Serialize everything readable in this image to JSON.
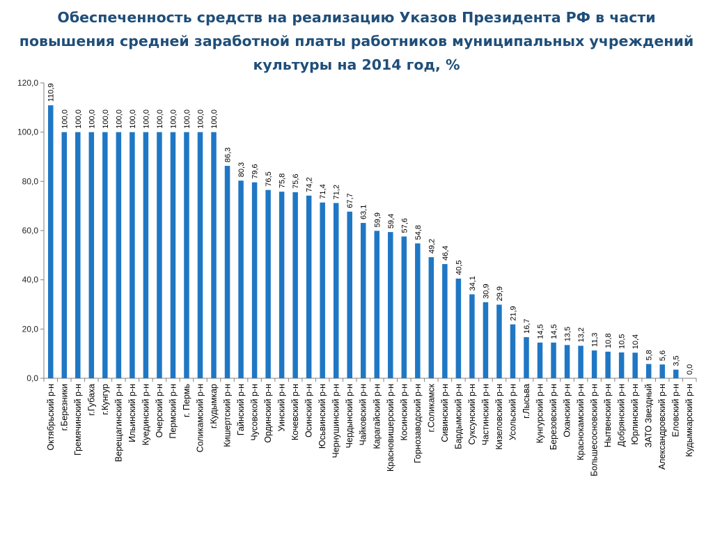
{
  "chart_data": {
    "type": "bar",
    "title": "Обеспеченность средств на реализацию Указов Президента РФ в части повышения средней заработной платы работников муниципальных учреждений культуры на 2014 год, %",
    "xlabel": "",
    "ylabel": "",
    "ylim": [
      0,
      120
    ],
    "yticks": [
      "0,0",
      "20,0",
      "40,0",
      "60,0",
      "80,0",
      "100,0",
      "120,0"
    ],
    "ytick_values": [
      0,
      20,
      40,
      60,
      80,
      100,
      120
    ],
    "grid": false,
    "legend": "none",
    "bar_color": "#1f77c4",
    "categories": [
      "Октябрьский р-н",
      "г.Березники",
      "Гремячинский р-н",
      "г.Губаха",
      "г.Кунгур",
      "Верещагинский р-н",
      "Ильинский р-н",
      "Куединский р-н",
      "Очерский р-н",
      "Пермский р-н",
      "г. Пермь",
      "Соликамский р-н",
      "г.Кудымкар",
      "Кишертский р-н",
      "Гайнский р-н",
      "Чусовской р-н",
      "Ординский р-н",
      "Уинский р-н",
      "Кочевский р-н",
      "Осинский р-н",
      "Юсьвинский р-н",
      "Чернушинский р-н",
      "Чердынский р-н",
      "Чайковский р-н",
      "Карагайский р-н",
      "Красновишерский р-н",
      "Косинский р-н",
      "Горнозаводский р-н",
      "г.Соликамск",
      "Сивинский р-н",
      "Бардымский р-н",
      "Суксунский р-н",
      "Частинский р-н",
      "Кизеловский р-н",
      "Усольский р-н",
      "г.Лысьва",
      "Кунгурский р-н",
      "Березовский р-н",
      "Оханский р-н",
      "Краснокамский р-н",
      "Большесосновский р-н",
      "Нытвенский р-н",
      "Добрянский р-н",
      "Юрлинский р-н",
      "ЗАТО Звездный",
      "Александровский р-н",
      "Еловский р-н",
      "Кудымкарский р-н"
    ],
    "values": [
      110.9,
      100.0,
      100.0,
      100.0,
      100.0,
      100.0,
      100.0,
      100.0,
      100.0,
      100.0,
      100.0,
      100.0,
      100.0,
      86.3,
      80.3,
      79.6,
      76.5,
      75.8,
      75.6,
      74.2,
      71.4,
      71.2,
      67.7,
      63.1,
      59.9,
      59.4,
      57.6,
      54.8,
      49.2,
      46.4,
      40.5,
      34.1,
      30.9,
      29.9,
      21.9,
      16.7,
      14.5,
      14.5,
      13.5,
      13.2,
      11.3,
      10.8,
      10.5,
      10.4,
      5.8,
      5.6,
      3.5,
      0.0
    ],
    "value_labels": [
      "110,9",
      "100,0",
      "100,0",
      "100,0",
      "100,0",
      "100,0",
      "100,0",
      "100,0",
      "100,0",
      "100,0",
      "100,0",
      "100,0",
      "100,0",
      "86,3",
      "80,3",
      "79,6",
      "76,5",
      "75,8",
      "75,6",
      "74,2",
      "71,4",
      "71,2",
      "67,7",
      "63,1",
      "59,9",
      "59,4",
      "57,6",
      "54,8",
      "49,2",
      "46,4",
      "40,5",
      "34,1",
      "30,9",
      "29,9",
      "21,9",
      "16,7",
      "14,5",
      "14,5",
      "13,5",
      "13,2",
      "11,3",
      "10,8",
      "10,5",
      "10,4",
      "5,8",
      "5,6",
      "3,5",
      "0,0"
    ]
  }
}
